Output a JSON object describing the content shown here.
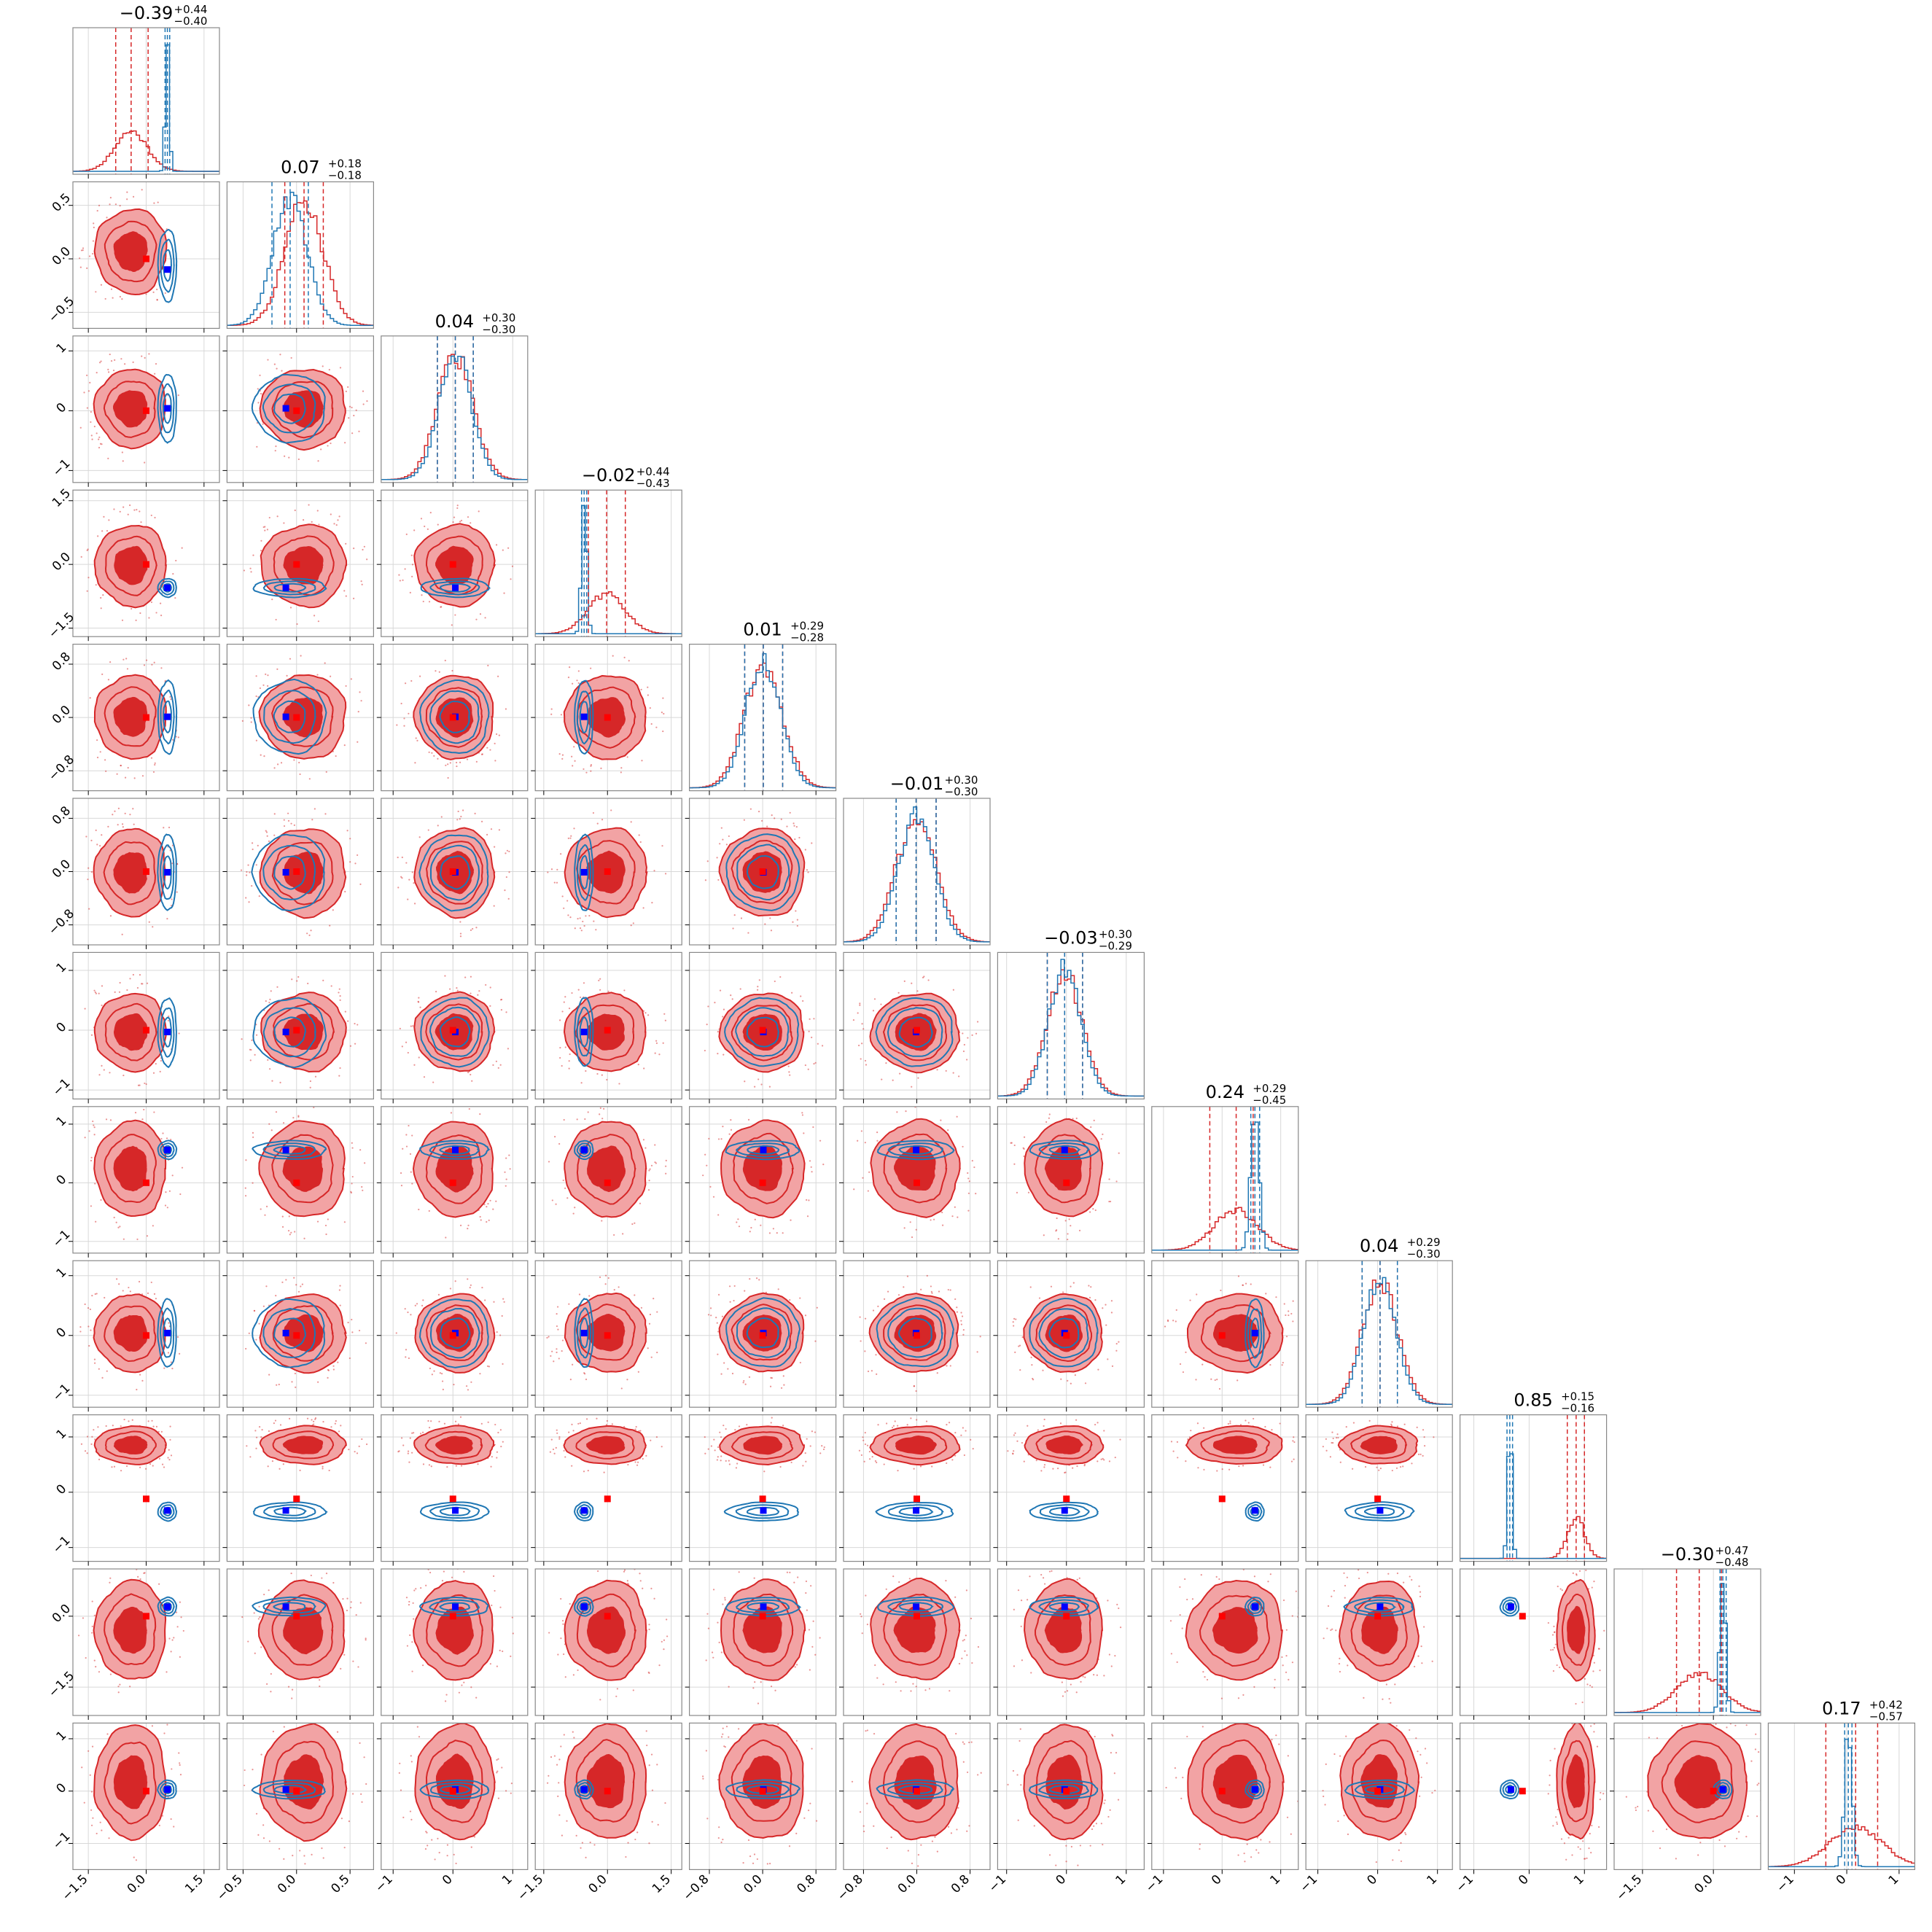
{
  "chart_data": {
    "type": "corner",
    "n_params": 12,
    "grid": true,
    "colors": {
      "red": "#d62728",
      "red_fill_outer": "#f2a3a4",
      "red_fill_inner": "#d62728",
      "blue": "#1f77b4",
      "truth_blue": "#0000ff",
      "truth_red": "#ff0000",
      "frame": "#888888",
      "gridline": "#d8d8d8"
    },
    "titles": [
      {
        "median": "−0.39",
        "plus": "+0.44",
        "minus": "−0.40"
      },
      {
        "median": "0.07",
        "plus": "+0.18",
        "minus": "−0.18"
      },
      {
        "median": "0.04",
        "plus": "+0.30",
        "minus": "−0.30"
      },
      {
        "median": "−0.02",
        "plus": "+0.44",
        "minus": "−0.43"
      },
      {
        "median": "0.01",
        "plus": "+0.29",
        "minus": "−0.28"
      },
      {
        "median": "−0.01",
        "plus": "+0.30",
        "minus": "−0.30"
      },
      {
        "median": "−0.03",
        "plus": "+0.30",
        "minus": "−0.29"
      },
      {
        "median": "0.24",
        "plus": "+0.29",
        "minus": "−0.45"
      },
      {
        "median": "0.04",
        "plus": "+0.29",
        "minus": "−0.30"
      },
      {
        "median": "0.85",
        "plus": "+0.15",
        "minus": "−0.16"
      },
      {
        "median": "−0.30",
        "plus": "+0.47",
        "minus": "−0.48"
      },
      {
        "median": "0.17",
        "plus": "+0.42",
        "minus": "−0.57"
      }
    ],
    "axes": [
      {
        "range": [
          -1.9,
          1.9
        ],
        "ticks": [
          -1.5,
          0.0,
          1.5
        ],
        "tick_labels": [
          "−1.5",
          "0.0",
          "1.5"
        ]
      },
      {
        "range": [
          -0.65,
          0.72
        ],
        "ticks": [
          -0.5,
          0.0,
          0.5
        ],
        "tick_labels": [
          "−0.5",
          "0.0",
          "0.5"
        ]
      },
      {
        "range": [
          -1.2,
          1.25
        ],
        "ticks": [
          -1,
          0,
          1
        ],
        "tick_labels": [
          "−1",
          "0",
          "1"
        ]
      },
      {
        "range": [
          -1.7,
          1.75
        ],
        "ticks": [
          -1.5,
          0.0,
          1.5
        ],
        "tick_labels": [
          "−1.5",
          "0.0",
          "1.5"
        ]
      },
      {
        "range": [
          -1.1,
          1.1
        ],
        "ticks": [
          -0.8,
          0.0,
          0.8
        ],
        "tick_labels": [
          "−0.8",
          "0.0",
          "0.8"
        ]
      },
      {
        "range": [
          -1.1,
          1.1
        ],
        "ticks": [
          -0.8,
          0.0,
          0.8
        ],
        "tick_labels": [
          "−0.8",
          "0.0",
          "0.8"
        ]
      },
      {
        "range": [
          -1.15,
          1.3
        ],
        "ticks": [
          -1,
          0,
          1
        ],
        "tick_labels": [
          "−1",
          "0",
          "1"
        ]
      },
      {
        "range": [
          -1.2,
          1.3
        ],
        "ticks": [
          -1,
          0,
          1
        ],
        "tick_labels": [
          "−1",
          "0",
          "1"
        ]
      },
      {
        "range": [
          -1.2,
          1.25
        ],
        "ticks": [
          -1,
          0,
          1
        ],
        "tick_labels": [
          "−1",
          "0",
          "1"
        ]
      },
      {
        "range": [
          -1.25,
          1.4
        ],
        "ticks": [
          -1,
          0,
          1
        ],
        "tick_labels": [
          "−1",
          "0",
          "1"
        ]
      },
      {
        "range": [
          -2.1,
          1.0
        ],
        "ticks": [
          -1.5,
          0.0
        ],
        "tick_labels": [
          "−1.5",
          "0.0"
        ]
      },
      {
        "range": [
          -1.5,
          1.3
        ],
        "ticks": [
          -1,
          0,
          1
        ],
        "tick_labels": [
          "−1",
          "0",
          "1"
        ]
      }
    ],
    "posteriors": {
      "red": {
        "median": [
          -0.39,
          0.07,
          0.04,
          -0.02,
          0.01,
          -0.01,
          -0.03,
          0.24,
          0.04,
          0.85,
          -0.3,
          0.17
        ],
        "lower": [
          -0.79,
          -0.11,
          -0.26,
          -0.45,
          -0.27,
          -0.31,
          -0.32,
          -0.21,
          -0.26,
          0.69,
          -0.78,
          -0.4
        ],
        "upper": [
          0.05,
          0.25,
          0.34,
          0.42,
          0.3,
          0.29,
          0.27,
          0.53,
          0.33,
          1.0,
          0.17,
          0.59
        ]
      },
      "blue": {
        "median": [
          0.55,
          -0.06,
          0.04,
          -0.55,
          0.01,
          -0.01,
          -0.03,
          0.56,
          0.04,
          -0.35,
          0.2,
          0.03
        ],
        "sigma": [
          0.05,
          0.16,
          0.27,
          0.06,
          0.26,
          0.27,
          0.27,
          0.07,
          0.27,
          0.04,
          0.06,
          0.07
        ],
        "lower": [
          0.49,
          -0.23,
          -0.26,
          -0.61,
          -0.27,
          -0.31,
          -0.32,
          0.49,
          -0.26,
          -0.4,
          0.14,
          -0.04
        ],
        "upper": [
          0.61,
          0.11,
          0.34,
          -0.49,
          0.3,
          0.29,
          0.27,
          0.64,
          0.33,
          -0.3,
          0.27,
          0.1
        ]
      }
    },
    "truth_blue": [
      0.55,
      -0.1,
      0.04,
      -0.55,
      0.01,
      -0.01,
      -0.03,
      0.56,
      0.04,
      -0.33,
      0.2,
      0.03
    ],
    "truth_red": [
      0.0,
      0.0,
      0.0,
      0.0,
      0.0,
      0.0,
      0.0,
      0.0,
      0.0,
      -0.12,
      0.0,
      0.0
    ]
  }
}
